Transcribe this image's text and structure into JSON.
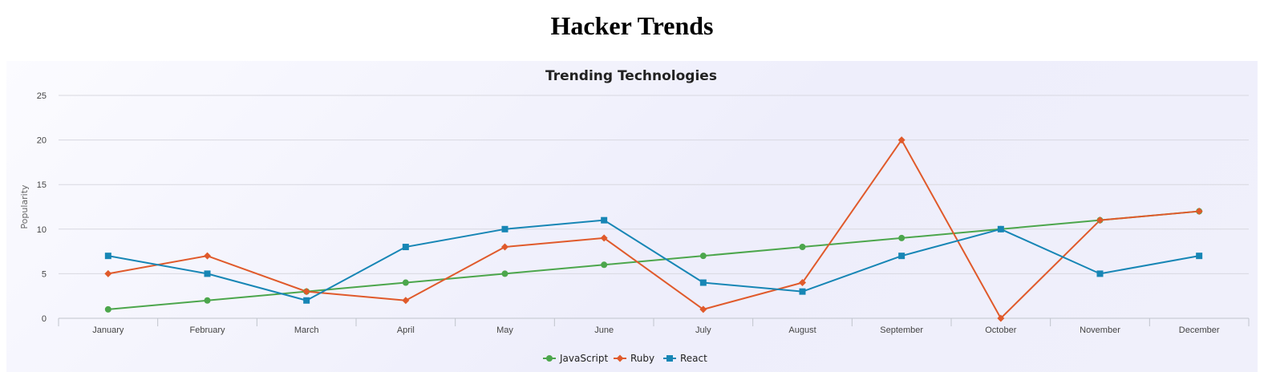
{
  "page": {
    "heading": "Hacker Trends"
  },
  "chart_data": {
    "type": "line",
    "title": "Trending Technologies",
    "xlabel": "",
    "ylabel": "Popularity",
    "ylim": [
      0,
      25
    ],
    "yticks": [
      0,
      5,
      10,
      15,
      20,
      25
    ],
    "grid": true,
    "legend_position": "bottom-center",
    "categories": [
      "January",
      "February",
      "March",
      "April",
      "May",
      "June",
      "July",
      "August",
      "September",
      "October",
      "November",
      "December"
    ],
    "series": [
      {
        "name": "JavaScript",
        "color": "#4ca64c",
        "marker": "circle",
        "values": [
          1,
          2,
          3,
          4,
          5,
          6,
          7,
          8,
          9,
          10,
          11,
          12
        ]
      },
      {
        "name": "Ruby",
        "color": "#e05a2b",
        "marker": "diamond",
        "values": [
          5,
          7,
          3,
          2,
          8,
          9,
          1,
          4,
          20,
          0,
          11,
          12
        ]
      },
      {
        "name": "React",
        "color": "#1786b5",
        "marker": "square",
        "values": [
          7,
          5,
          2,
          8,
          10,
          11,
          4,
          3,
          7,
          10,
          5,
          7
        ]
      }
    ]
  }
}
